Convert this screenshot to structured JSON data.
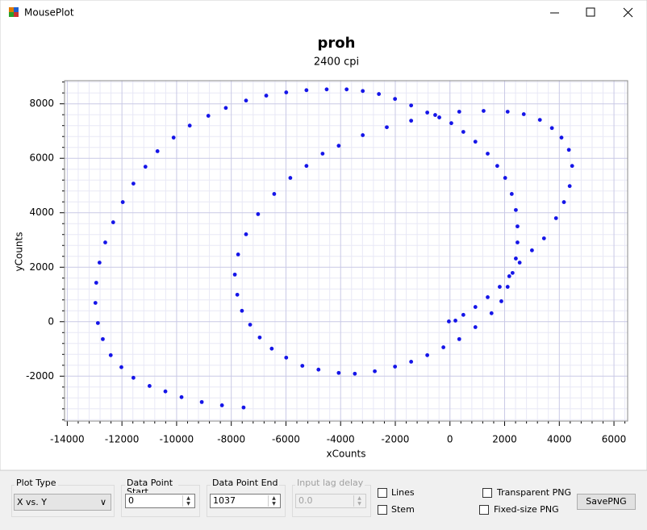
{
  "window": {
    "title": "MousePlot"
  },
  "chart_data": {
    "type": "scatter",
    "title": "proh",
    "subtitle": "2400 cpi",
    "xlabel": "xCounts",
    "ylabel": "yCounts",
    "color": "#1515e8",
    "grid": true,
    "xlim": [
      -14100,
      6500
    ],
    "ylim": [
      -3650,
      8850
    ],
    "xticks": [
      -14000,
      -12000,
      -10000,
      -8000,
      -6000,
      -4000,
      -2000,
      0,
      2000,
      4000,
      6000
    ],
    "yticks": [
      -2000,
      0,
      2000,
      4000,
      6000,
      8000
    ],
    "x": [
      -40,
      200,
      490,
      930,
      1380,
      1820,
      2170,
      2550,
      3000,
      3440,
      3880,
      4170,
      4380,
      4470,
      4350,
      4080,
      3730,
      3290,
      2700,
      2110,
      1230,
      340,
      -540,
      -1420,
      -2310,
      -3190,
      -4070,
      -4660,
      -5250,
      -5840,
      -6430,
      -7020,
      -7460,
      -7750,
      -7870,
      -7780,
      -7610,
      -7310,
      -6960,
      -6520,
      -5990,
      -5400,
      -4810,
      -4070,
      -3480,
      -2750,
      -2010,
      -1420,
      -830,
      -240,
      340,
      930,
      1520,
      1880,
      2110,
      2290,
      2410,
      2470,
      2470,
      2410,
      2260,
      2020,
      1730,
      1380,
      930,
      490,
      50,
      -390,
      -830,
      -1420,
      -2010,
      -2600,
      -3190,
      -3780,
      -4510,
      -5250,
      -5990,
      -6720,
      -7460,
      -8200,
      -8840,
      -9520,
      -10110,
      -10700,
      -11140,
      -11580,
      -11970,
      -12320,
      -12610,
      -12820,
      -12940,
      -12970,
      -12880,
      -12700,
      -12410,
      -12020,
      -11580,
      -10990,
      -10410,
      -9820,
      -9080,
      -8340,
      -7550
    ],
    "values": [
      10,
      40,
      250,
      540,
      900,
      1280,
      1670,
      2170,
      2620,
      3060,
      3800,
      4390,
      4980,
      5720,
      6310,
      6760,
      7110,
      7410,
      7620,
      7710,
      7740,
      7710,
      7590,
      7380,
      7140,
      6850,
      6460,
      6170,
      5720,
      5280,
      4690,
      3950,
      3210,
      2470,
      1730,
      990,
      400,
      -110,
      -580,
      -990,
      -1320,
      -1620,
      -1760,
      -1880,
      -1910,
      -1820,
      -1650,
      -1470,
      -1230,
      -940,
      -640,
      -200,
      310,
      750,
      1280,
      1790,
      2320,
      2910,
      3500,
      4100,
      4690,
      5280,
      5720,
      6170,
      6610,
      6970,
      7290,
      7500,
      7680,
      7940,
      8180,
      8360,
      8470,
      8530,
      8530,
      8500,
      8420,
      8300,
      8120,
      7850,
      7560,
      7200,
      6760,
      6260,
      5690,
      5070,
      4390,
      3650,
      2910,
      2170,
      1430,
      690,
      -50,
      -640,
      -1230,
      -1670,
      -2060,
      -2360,
      -2560,
      -2770,
      -2950,
      -3070,
      -3150
    ]
  },
  "controls": {
    "plot_type": {
      "label": "Plot Type",
      "value": "X vs. Y"
    },
    "start": {
      "label": "Data Point Start",
      "value": "0"
    },
    "end": {
      "label": "Data Point End",
      "value": "1037"
    },
    "lag": {
      "label": "Input lag delay",
      "value": "0.0"
    },
    "lines": "Lines",
    "stem": "Stem",
    "transparent": "Transparent PNG",
    "fixed": "Fixed-size PNG",
    "save": "SavePNG"
  }
}
